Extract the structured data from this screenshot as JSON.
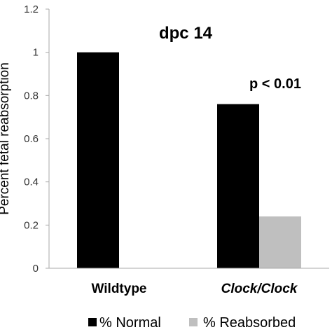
{
  "chart_data": {
    "type": "bar",
    "title": "dpc 14",
    "ylabel": "Percent fetal reabsorption",
    "xlabel": "",
    "ylim": [
      0,
      1.2
    ],
    "yticks": [
      0,
      0.2,
      0.4,
      0.6,
      0.8,
      1,
      1.2
    ],
    "ytick_labels": [
      "0",
      "0.2",
      "0.4",
      "0.6",
      "0.8",
      "1",
      "1.2"
    ],
    "categories": [
      "Wildtype",
      "Clock/Clock"
    ],
    "series": [
      {
        "name": "% Normal",
        "values": [
          1,
          0.76
        ],
        "color": "#000000"
      },
      {
        "name": "% Reabsorbed",
        "values": [
          0,
          0.24
        ],
        "color": "#bfbfbf"
      }
    ],
    "annotations": [
      {
        "text": "p < 0.01",
        "category": "Clock/Clock"
      }
    ],
    "grid": false,
    "legend": "bottom"
  }
}
